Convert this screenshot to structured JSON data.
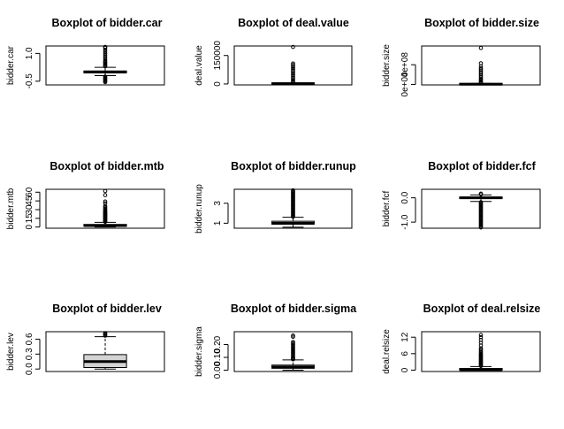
{
  "window": {
    "title": ""
  },
  "chart_data": [
    {
      "type": "boxplot",
      "title": "Boxplot of bidder.car",
      "ylabel": "bidder.car",
      "ylim": [
        -0.7,
        1.4
      ],
      "yticks": [
        -0.5,
        1.0
      ],
      "ytick_labels": [
        "-0.5",
        "1.0"
      ],
      "box": {
        "whisker_low": -0.2,
        "q1": -0.05,
        "median": 0.0,
        "q3": 0.05,
        "whisker_high": 0.25,
        "fill": "#ffffff"
      },
      "outliers_high": [
        0.3,
        0.35,
        0.4,
        0.45,
        0.5,
        0.55,
        0.6,
        0.7,
        0.8,
        0.9,
        1.0,
        1.1,
        1.2,
        1.3,
        1.35
      ],
      "outliers_low": [
        -0.25,
        -0.3,
        -0.35,
        -0.4,
        -0.45,
        -0.5,
        -0.55
      ]
    },
    {
      "type": "boxplot",
      "title": "Boxplot of deal.value",
      "ylabel": "deal.value",
      "ylim": [
        -5000,
        200000
      ],
      "yticks": [
        0,
        150000
      ],
      "ytick_labels": [
        "0",
        "150000"
      ],
      "box": {
        "whisker_low": 0,
        "q1": 200,
        "median": 800,
        "q3": 3000,
        "whisker_high": 6000,
        "fill": "#ffffff"
      },
      "outliers_high": [
        8000,
        12000,
        18000,
        25000,
        32000,
        40000,
        48000,
        55000,
        62000,
        70000,
        78000,
        85000,
        92000,
        100000,
        108000,
        195000
      ],
      "outliers_low": []
    },
    {
      "type": "boxplot",
      "title": "Boxplot of bidder.size",
      "ylabel": "bidder.size",
      "ylim": [
        -10000000.0,
        780000000.0
      ],
      "yticks": [
        0,
        400000000
      ],
      "ytick_labels": [
        "0e+00",
        "4e+08"
      ],
      "box": {
        "whisker_low": 0,
        "q1": 1000000,
        "median": 3000000,
        "q3": 8000000,
        "whisker_high": 20000000,
        "fill": "#ffffff"
      },
      "outliers_high": [
        25000000,
        40000000,
        60000000,
        80000000,
        100000000,
        120000000,
        150000000,
        180000000,
        210000000,
        240000000,
        270000000,
        300000000,
        330000000,
        370000000,
        430000000,
        740000000
      ],
      "outliers_low": []
    },
    {
      "type": "boxplot",
      "title": "Boxplot of bidder.mtb",
      "ylabel": "bidder.mtb",
      "ylim": [
        -2,
        65
      ],
      "yticks": [
        0,
        15,
        30,
        45,
        60
      ],
      "ytick_labels": [
        "0",
        "15",
        "30",
        "45",
        "60"
      ],
      "box": {
        "whisker_low": 0,
        "q1": 1.5,
        "median": 2.5,
        "q3": 4.5,
        "whisker_high": 8,
        "fill": "#ffffff"
      },
      "outliers_high": [
        9,
        10,
        11,
        12,
        13,
        14,
        15,
        16,
        17,
        18,
        19,
        20,
        21,
        22,
        23,
        24,
        25,
        26,
        27,
        28,
        30,
        32,
        34,
        36,
        41,
        44,
        55,
        62
      ],
      "outliers_low": []
    },
    {
      "type": "boxplot",
      "title": "Boxplot of bidder.runup",
      "ylabel": "bidder.runup",
      "ylim": [
        0.5,
        4.4
      ],
      "yticks": [
        1,
        3
      ],
      "ytick_labels": [
        "1",
        "3"
      ],
      "box": {
        "whisker_low": 0.6,
        "q1": 0.9,
        "median": 1.0,
        "q3": 1.2,
        "whisker_high": 1.6,
        "fill": "#ffffff"
      },
      "outliers_high": [
        1.65,
        1.7,
        1.8,
        1.9,
        2.0,
        2.1,
        2.2,
        2.3,
        2.4,
        2.5,
        2.6,
        2.7,
        2.8,
        2.9,
        3.0,
        3.1,
        3.2,
        3.3,
        3.4,
        3.5,
        3.6,
        3.7,
        3.8,
        3.9,
        4.0,
        4.1,
        4.2,
        4.3
      ],
      "outliers_low": []
    },
    {
      "type": "boxplot",
      "title": "Boxplot of bidder.fcf",
      "ylabel": "bidder.fcf",
      "ylim": [
        -1.25,
        0.35
      ],
      "yticks": [
        -1.0,
        0.0
      ],
      "ytick_labels": [
        "-1.0",
        "0.0"
      ],
      "box": {
        "whisker_low": -0.15,
        "q1": -0.03,
        "median": 0.0,
        "q3": 0.03,
        "whisker_high": 0.12,
        "fill": "#ffffff"
      },
      "outliers_high": [
        0.14,
        0.17
      ],
      "outliers_low": [
        -0.18,
        -0.22,
        -0.26,
        -0.3,
        -0.34,
        -0.38,
        -0.42,
        -0.46,
        -0.5,
        -0.54,
        -0.58,
        -0.62,
        -0.66,
        -0.7,
        -0.74,
        -0.78,
        -0.82,
        -0.86,
        -0.9,
        -0.94,
        -0.98,
        -1.02,
        -1.06,
        -1.1,
        -1.14,
        -1.18,
        -1.22
      ]
    },
    {
      "type": "boxplot",
      "title": "Boxplot of bidder.lev",
      "ylabel": "bidder.lev",
      "ylim": [
        -0.05,
        0.75
      ],
      "yticks": [
        0.0,
        0.3,
        0.6
      ],
      "ytick_labels": [
        "0.0",
        "0.3",
        "0.6"
      ],
      "box": {
        "whisker_low": 0.0,
        "q1": 0.03,
        "median": 0.15,
        "q3": 0.29,
        "whisker_high": 0.65,
        "fill": "#d3d3d3"
      },
      "outliers_high": [
        0.67,
        0.69,
        0.71,
        0.72
      ],
      "outliers_low": []
    },
    {
      "type": "boxplot",
      "title": "Boxplot of bidder.sigma",
      "ylabel": "bidder.sigma",
      "ylim": [
        -0.01,
        0.3
      ],
      "yticks": [
        0.0,
        0.1,
        0.2
      ],
      "ytick_labels": [
        "0.00",
        "0.10",
        "0.20"
      ],
      "box": {
        "whisker_low": 0.0,
        "q1": 0.015,
        "median": 0.025,
        "q3": 0.04,
        "whisker_high": 0.08,
        "fill": "#ffffff"
      },
      "outliers_high": [
        0.085,
        0.09,
        0.095,
        0.1,
        0.11,
        0.12,
        0.13,
        0.14,
        0.15,
        0.16,
        0.17,
        0.18,
        0.19,
        0.2,
        0.21,
        0.22,
        0.26,
        0.27
      ],
      "outliers_low": []
    },
    {
      "type": "boxplot",
      "title": "Boxplot of deal.relsize",
      "ylabel": "deal.relsize",
      "ylim": [
        -0.5,
        14
      ],
      "yticks": [
        0,
        6,
        12
      ],
      "ytick_labels": [
        "0",
        "6",
        "12"
      ],
      "box": {
        "whisker_low": 0,
        "q1": 0.05,
        "median": 0.2,
        "q3": 0.6,
        "whisker_high": 1.3,
        "fill": "#ffffff"
      },
      "outliers_high": [
        1.5,
        1.8,
        2.1,
        2.4,
        2.7,
        3.0,
        3.3,
        3.6,
        3.9,
        4.2,
        4.5,
        4.8,
        5.1,
        5.4,
        5.7,
        6.0,
        6.5,
        7.0,
        7.5,
        8.0,
        9.0,
        10.0,
        11.0,
        12.0,
        12.8
      ],
      "outliers_low": []
    }
  ]
}
